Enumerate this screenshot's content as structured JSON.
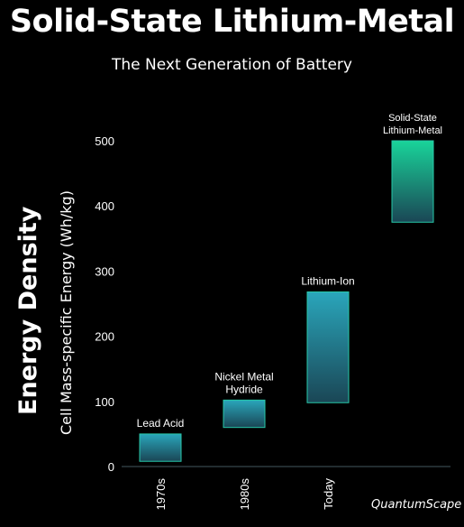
{
  "header": {
    "title": "Solid-State Lithium-Metal",
    "subtitle": "The Next Generation of Battery"
  },
  "axis_titles": {
    "main": "Energy Density",
    "sub": "Cell Mass-specific Energy (Wh/kg)"
  },
  "logo": {
    "text": "QuantumScape"
  },
  "colors": {
    "background": "#000000",
    "bar_top": "#2aa6bb",
    "bar_bottom": "#1a4655",
    "bar_top_highlight": "#19d49a",
    "bar_border": "#27c8a8",
    "axis": "#2d3a40"
  },
  "chart_data": {
    "type": "bar",
    "subtype": "floating-range",
    "ylim": [
      0,
      500
    ],
    "yticks": [
      0,
      100,
      200,
      300,
      400,
      500
    ],
    "x_ticks": [
      "1970s",
      "1980s",
      "Today",
      ""
    ],
    "series": [
      {
        "label": "Lead Acid",
        "x": "1970s",
        "low": 8,
        "high": 50
      },
      {
        "label": "Nickel Metal Hydride",
        "x": "1980s",
        "low": 60,
        "high": 102
      },
      {
        "label": "Lithium-Ion",
        "x": "Today",
        "low": 98,
        "high": 268
      },
      {
        "label": "Solid-State Lithium-Metal",
        "x": "",
        "low": 375,
        "high": 500
      }
    ]
  }
}
